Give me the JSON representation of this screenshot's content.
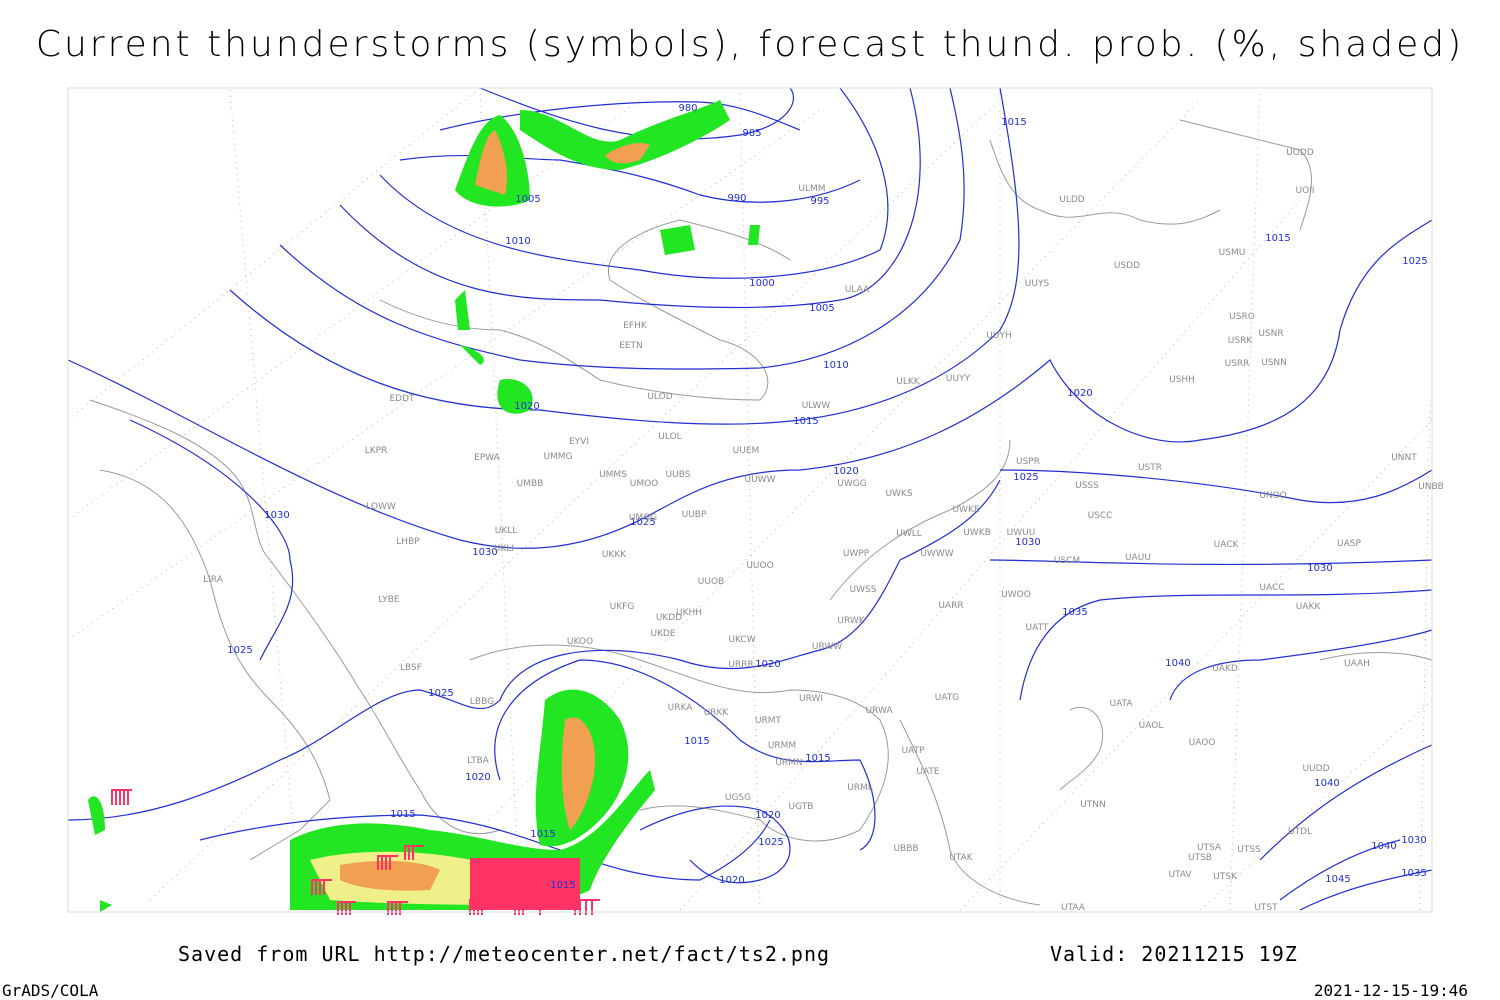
{
  "title": "Current thunderstorms (symbols), forecast thund. prob. (%, shaded)",
  "footer": {
    "source": "Saved from URL http://meteocenter.net/fact/ts2.png",
    "valid": "Valid: 20211215 19Z",
    "software": "GrADS/COLA",
    "timestamp": "2021-12-15-19:46"
  },
  "isobar_labels": [
    "980",
    "985",
    "990",
    "995",
    "1005",
    "1010",
    "1000",
    "1005",
    "1010",
    "1015",
    "1020",
    "1020",
    "1015",
    "1015",
    "1025",
    "1020",
    "1025",
    "1030",
    "1030",
    "1025",
    "1030",
    "1030",
    "1035",
    "1040",
    "1025",
    "1025",
    "1020",
    "1015",
    "1015",
    "1020",
    "1015",
    "1015",
    "1020",
    "1025",
    "1020",
    "1015",
    "1040",
    "1030",
    "1040",
    "1045",
    "1035"
  ],
  "stations": [
    "ULMM",
    "ULDD",
    "UUYS",
    "USDD",
    "USMU",
    "UODD",
    "UOII",
    "ULAA",
    "EFHK",
    "EETN",
    "USRO",
    "USRK",
    "USNR",
    "USRR",
    "USNN",
    "UUYH",
    "ULOD",
    "UUYY",
    "ULKK",
    "USHH",
    "ULWW",
    "EDDT",
    "ULOL",
    "EYVI",
    "LKPR",
    "UMMG",
    "EPWA",
    "UUEM",
    "USPR",
    "USTR",
    "UMMS",
    "UMOO",
    "UUBS",
    "UUWW",
    "UWGG",
    "UWKS",
    "USSS",
    "UNOO",
    "UNNT",
    "UNBB",
    "UMBB",
    "LOWW",
    "UWKE",
    "UKLL",
    "UMGG",
    "UUBP",
    "USCC",
    "UWLL",
    "UWKB",
    "UWUU",
    "UACK",
    "UASP",
    "LHBP",
    "UKLI",
    "UWPP",
    "UWWW",
    "USCM",
    "UAUU",
    "UKKK",
    "UUOO",
    "LIRA",
    "UUOB",
    "UWSS",
    "UACC",
    "LYBE",
    "UKHH",
    "UAKK",
    "UKFG",
    "UKDD",
    "UWOO",
    "UARR",
    "UKDE",
    "UKOO",
    "URWK",
    "UATT",
    "URWW",
    "UKCW",
    "URRR",
    "LBSF",
    "UAKD",
    "UAAH",
    "LBBG",
    "URKA",
    "URKK",
    "UATG",
    "URWI",
    "UATA",
    "URWA",
    "URMT",
    "UAOL",
    "URMM",
    "UAOO",
    "UATP",
    "URMN",
    "UATE",
    "UUDD",
    "LTBA",
    "URML",
    "UTNN",
    "UGSG",
    "UGTB",
    "UTDL",
    "UBBB",
    "UTSA",
    "UTSS",
    "UTSB",
    "UTAK",
    "UTAV",
    "UTSK",
    "UTAA",
    "UTST"
  ]
}
